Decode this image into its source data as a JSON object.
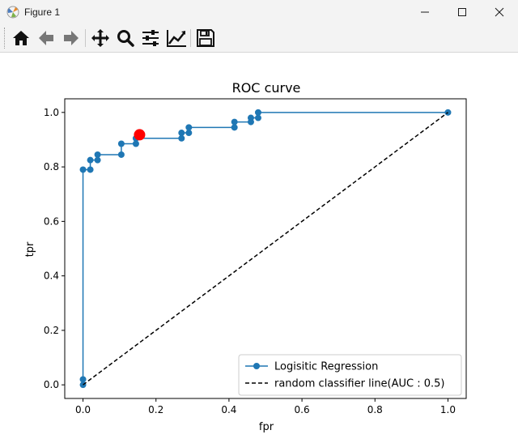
{
  "window": {
    "title": "Figure 1"
  },
  "toolbar": {
    "buttons": [
      {
        "name": "home-icon"
      },
      {
        "name": "back-arrow-icon"
      },
      {
        "name": "forward-arrow-icon"
      },
      {
        "name": "pan-icon"
      },
      {
        "name": "zoom-icon"
      },
      {
        "name": "configure-subplots-icon"
      },
      {
        "name": "edit-axis-icon"
      },
      {
        "name": "save-icon"
      }
    ]
  },
  "chart_data": {
    "type": "line",
    "title": "ROC curve",
    "xlabel": "fpr",
    "ylabel": "tpr",
    "xlim": [
      -0.05,
      1.05
    ],
    "ylim": [
      -0.05,
      1.05
    ],
    "xticks": [
      "0.0",
      "0.2",
      "0.4",
      "0.6",
      "0.8",
      "1.0"
    ],
    "yticks": [
      "0.0",
      "0.2",
      "0.4",
      "0.6",
      "0.8",
      "1.0"
    ],
    "series": [
      {
        "name": "Logisitic Regression",
        "color": "#1f77b4",
        "style": "step-line-with-markers",
        "x": [
          0.0,
          0.0,
          0.0,
          0.02,
          0.02,
          0.04,
          0.04,
          0.105,
          0.105,
          0.145,
          0.145,
          0.27,
          0.27,
          0.29,
          0.29,
          0.415,
          0.415,
          0.46,
          0.46,
          0.48,
          0.48,
          1.0
        ],
        "y": [
          0.0,
          0.02,
          0.79,
          0.79,
          0.825,
          0.825,
          0.845,
          0.845,
          0.885,
          0.885,
          0.905,
          0.905,
          0.925,
          0.925,
          0.945,
          0.945,
          0.965,
          0.965,
          0.98,
          0.98,
          1.0,
          1.0
        ]
      },
      {
        "name": "random classifier line(AUC : 0.5)",
        "color": "#000000",
        "style": "dashed",
        "x": [
          0.0,
          1.0
        ],
        "y": [
          0.0,
          1.0
        ]
      }
    ],
    "highlight_point": {
      "x": 0.155,
      "y": 0.918,
      "color": "#ff0000"
    },
    "legend": {
      "placement": "lower-right"
    },
    "grid": false
  }
}
